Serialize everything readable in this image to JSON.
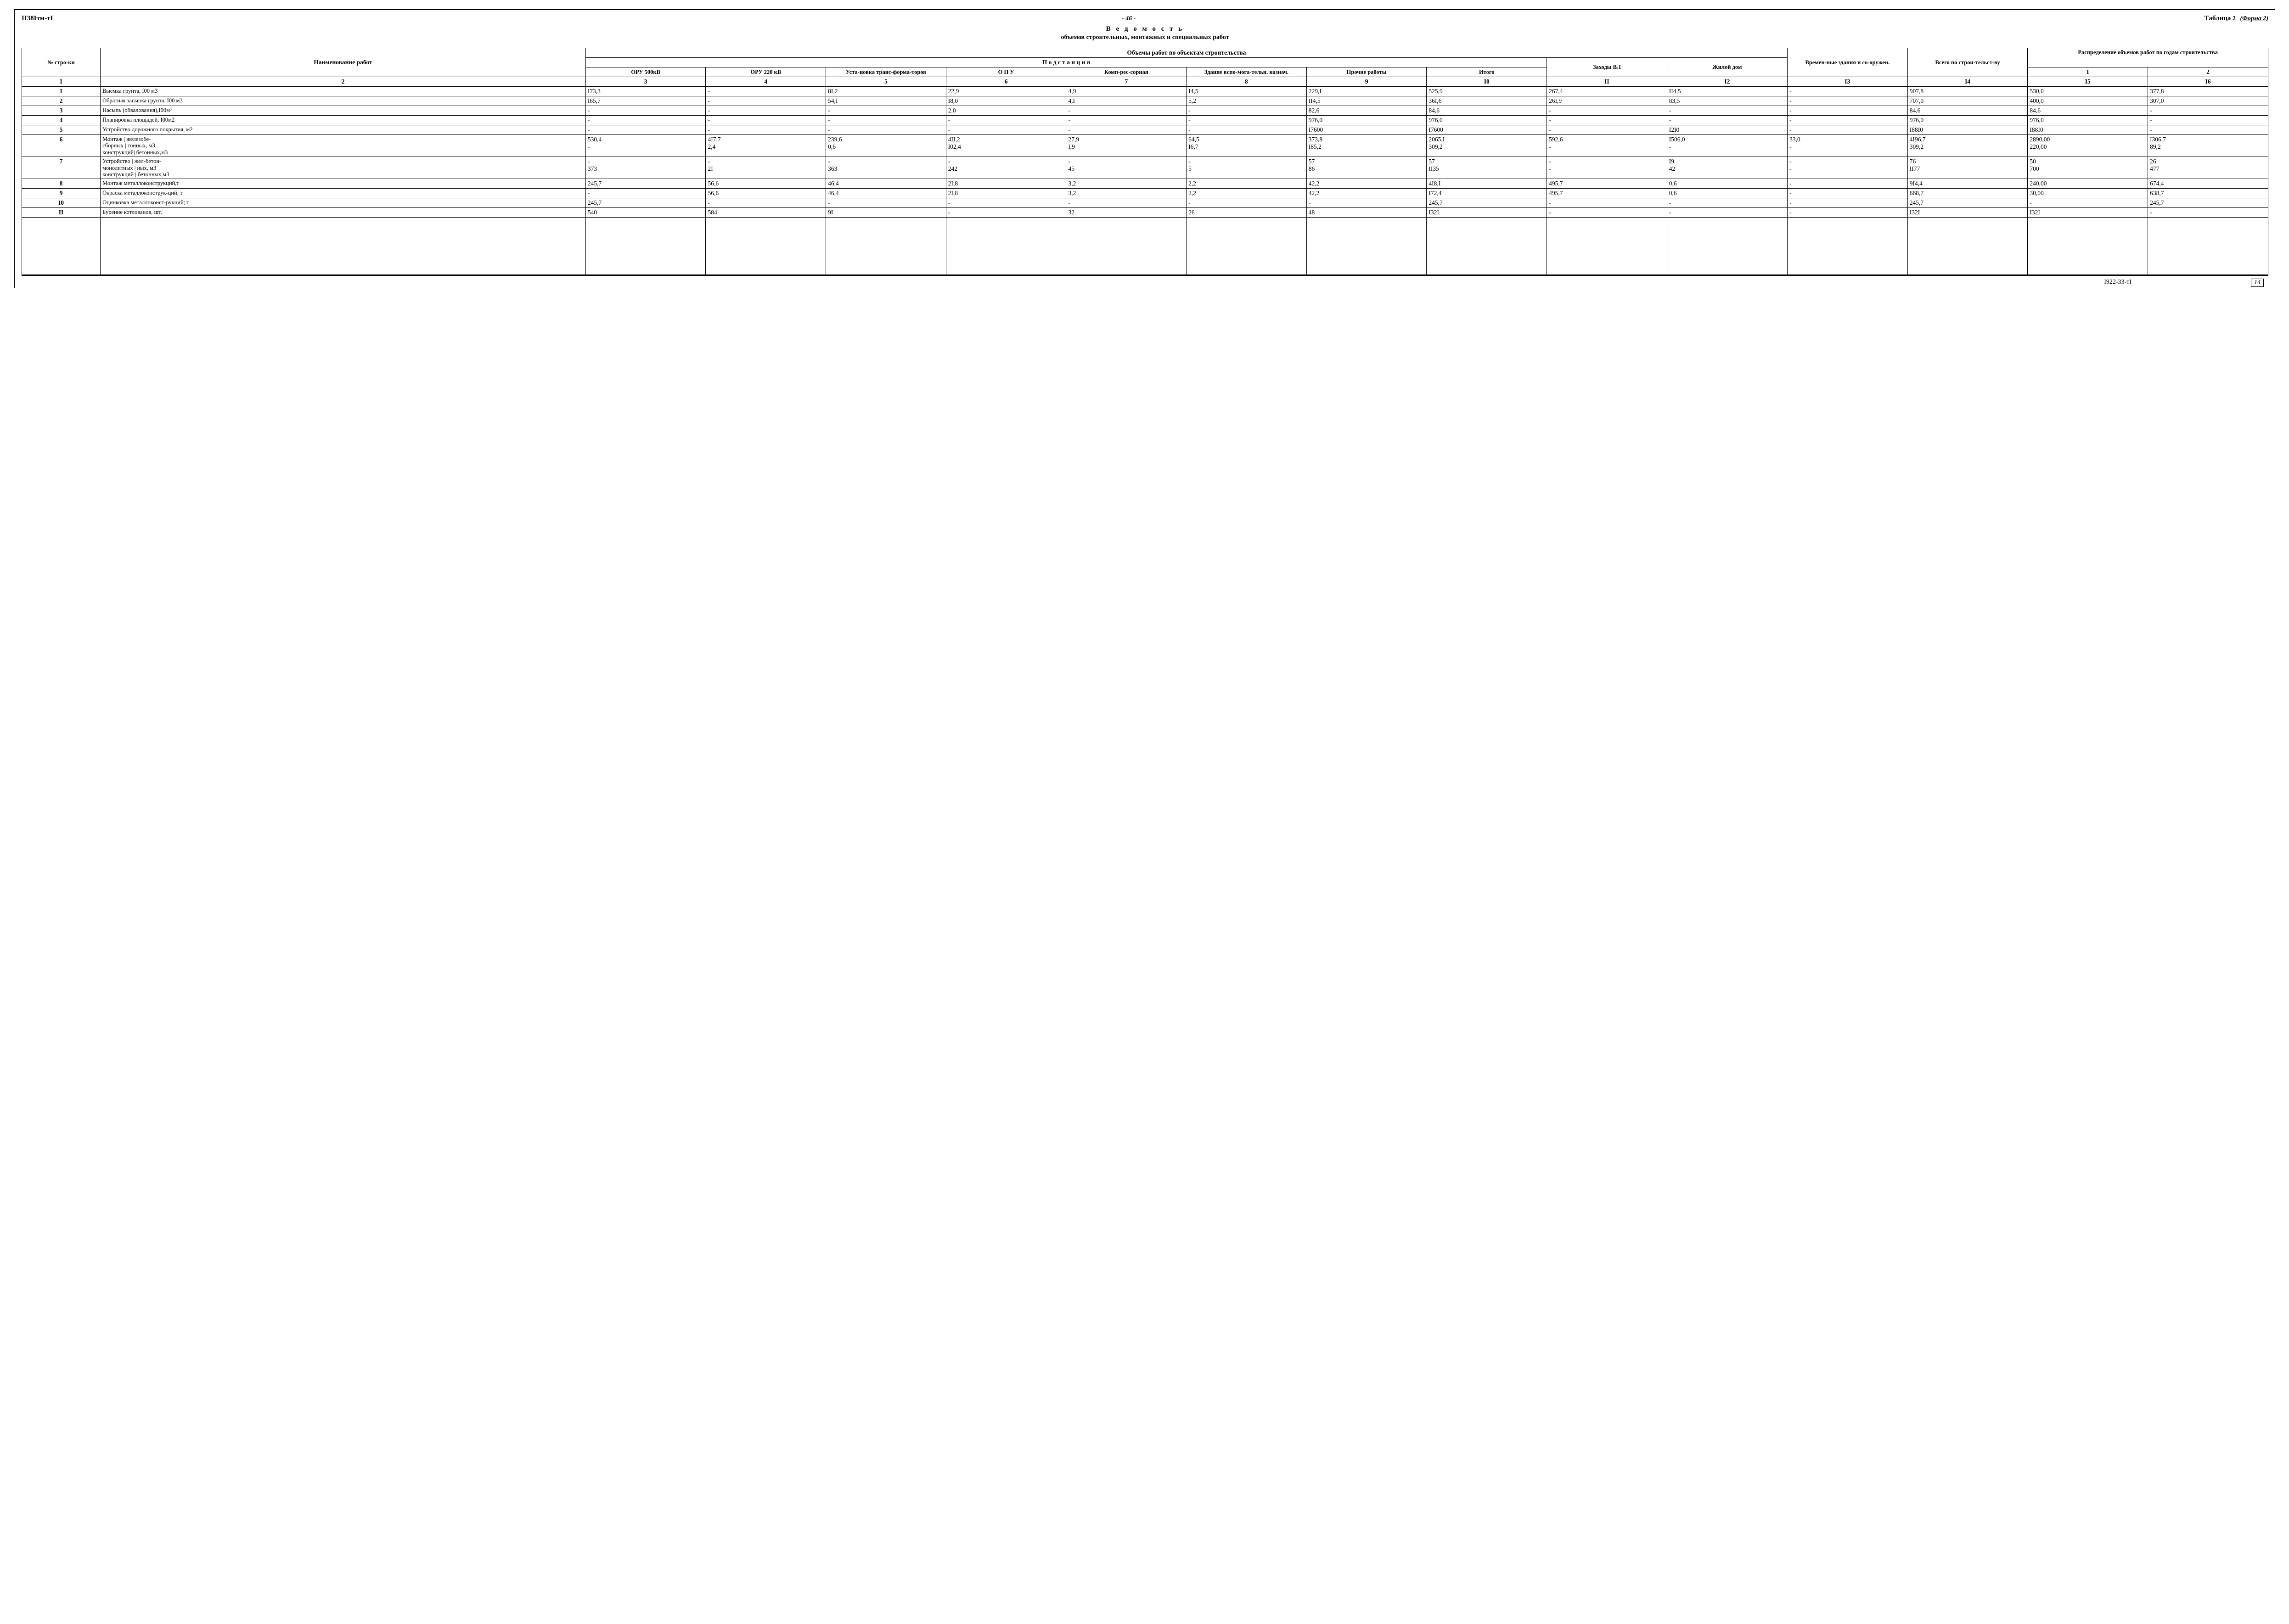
{
  "doc_code": "II38Iтм-тI",
  "page_number": "- 46 -",
  "table_label": "Таблица",
  "table_num": "2",
  "form_label": "(Форма 2)",
  "title_main": "В е д о м о с т ь",
  "title_sub": "объемов строительных, монтажных и специальных работ",
  "footer_code": "I922-33-тI",
  "footer_page": "14",
  "headers": {
    "c1": "№ стро-ки",
    "c2": "Наименование работ",
    "grp_obj": "Объемы работ по объектам строительства",
    "grp_pod": "П о д с т а н ц и я",
    "c3": "ОРУ 500кВ",
    "c4": "ОРУ 220 кВ",
    "c5": "Уста-новка транс-форма-торов",
    "c6": "О П У",
    "c7": "Комп-рес-сорная",
    "c8": "Здание вспо-мога-тельн. назнач.",
    "c9": "Прочие работы",
    "c10": "Итого",
    "c11": "Заходы ВЛ",
    "c12": "Жилой дом",
    "c13": "Времен-ные здания и со-оружен.",
    "c14": "Всего по строи-тельст-ву",
    "grp_dist": "Распределение объемов работ по годам строительства",
    "c15": "I",
    "c16": "2"
  },
  "col_nums": [
    "I",
    "2",
    "3",
    "4",
    "5",
    "6",
    "7",
    "8",
    "9",
    "I0",
    "II",
    "I2",
    "I3",
    "I4",
    "I5",
    "I6"
  ],
  "rows": [
    {
      "n": "I",
      "name": "Выемка грунта, I00 м3",
      "v": [
        "I73,3",
        "-",
        "8I,2",
        "22,9",
        "4,9",
        "I4,5",
        "229,I",
        "525,9",
        "267,4",
        "II4,5",
        "-",
        "907,8",
        "530,0",
        "377,8"
      ]
    },
    {
      "n": "2",
      "name": "Обратная засыпка грунта, I00 м3",
      "v": [
        "I65,7",
        "-",
        "54,I",
        "I8,0",
        "4,I",
        "5,2",
        "II4,5",
        "36I,6",
        "26I,9",
        "83,5",
        "-",
        "707,0",
        "400,0",
        "307,0"
      ]
    },
    {
      "n": "3",
      "name": "Насыпь (обвалования),I00м³",
      "v": [
        "-",
        "-",
        "-",
        "2,0",
        "-",
        "-",
        "82,6",
        "84,6",
        "-",
        "-",
        "-",
        "84,6",
        "84,6",
        "-"
      ]
    },
    {
      "n": "4",
      "name": "Планировка площадей, I00м2",
      "v": [
        "-",
        "-",
        "-",
        "-",
        "-",
        "-",
        "976,0",
        "976,0",
        "-",
        "-",
        "-",
        "976,0",
        "976,0",
        "-"
      ]
    },
    {
      "n": "5",
      "name": "Устройство дорожного покрытия, м2",
      "v": [
        "-",
        "-",
        "-",
        "-",
        "-",
        "-",
        "I7600",
        "I7600",
        "-",
        "I2I0",
        "-",
        "I88I0",
        "I88I0",
        "-"
      ]
    },
    {
      "n": "6",
      "name": "Монтаж        | железобе-\nсборных      | тонных, м3\nконструкций| бетонных,м3",
      "v": [
        "530,4\n-",
        "4I7,7\n2,4",
        "239,6\n0,6",
        "4II,2\nI02,4",
        "27,9\nI,9",
        "64,5\nI6,7",
        "373,8\nI85,2",
        "2065,I\n309,2",
        "592,6\n-",
        "I506,0\n-",
        "33,0\n-",
        "4I96,7\n309,2",
        "2890,00\n220,00",
        "I306,7\n89,2"
      ]
    },
    {
      "n": "7",
      "name": "Устройство  | жел-бетон-\nмонолитных | ных, м3\nконструкций | бетонных,м3",
      "v": [
        "-\n373",
        "-\n2I",
        "-\n363",
        "-\n242",
        "-\n45",
        "-\n5",
        "57\n86",
        "57\nII35",
        "-\n-",
        "I9\n42",
        "-\n-",
        "76\nII77",
        "50\n700",
        "26\n477"
      ]
    },
    {
      "n": "8",
      "name": "Монтаж металлоконструкций,т",
      "v": [
        "245,7",
        "56,6",
        "46,4",
        "2I,8",
        "3,2",
        "2,2",
        "42,2",
        "4I8,I",
        "495,7",
        "0,6",
        "-",
        "9I4,4",
        "240,00",
        "674,4"
      ]
    },
    {
      "n": "9",
      "name": "Окраска металлоконструк-ций, т",
      "v": [
        "-",
        "56,6",
        "46,4",
        "2I,8",
        "3,2",
        "2,2",
        "42,2",
        "I72,4",
        "495,7",
        "0,6",
        "-",
        "668,7",
        "30,00",
        "638,7"
      ]
    },
    {
      "n": "I0",
      "name": "Оцинковка металлоконст-рукций; т",
      "v": [
        "245,7",
        "-",
        "-",
        "-",
        "-",
        "-",
        "-",
        "245,7",
        "-",
        "-",
        "-",
        "245,7",
        "-",
        "245,7"
      ]
    },
    {
      "n": "II",
      "name": "Бурение котлованов, шт.",
      "v": [
        "540",
        "584",
        "9I",
        "-",
        "32",
        "26",
        "48",
        "I32I",
        "-",
        "-",
        "-",
        "I32I",
        "I32I",
        "-"
      ]
    }
  ]
}
